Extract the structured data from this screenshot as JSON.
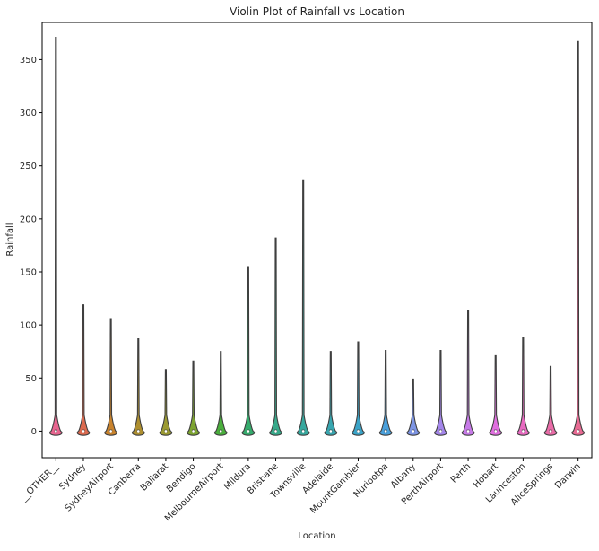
{
  "chart_data": {
    "type": "violin",
    "title": "Violin Plot of Rainfall vs Location",
    "xlabel": "Location",
    "ylabel": "Rainfall",
    "ylim": [
      -25,
      385
    ],
    "yticks": [
      0,
      50,
      100,
      150,
      200,
      250,
      300,
      350
    ],
    "grid": false,
    "categories": [
      "__OTHER__",
      "Sydney",
      "SydneyAirport",
      "Canberra",
      "Ballarat",
      "Bendigo",
      "MelbourneAirport",
      "Mildura",
      "Brisbane",
      "Townsville",
      "Adelaide",
      "MountGambier",
      "Nuriootpa",
      "Albany",
      "PerthAirport",
      "Perth",
      "Hobart",
      "Launceston",
      "AliceSprings",
      "Darwin"
    ],
    "max_values": [
      371,
      119,
      106,
      87,
      58,
      66,
      75,
      155,
      182,
      236,
      75,
      84,
      76,
      49,
      76,
      114,
      71,
      88,
      61,
      367
    ],
    "colors": [
      "#e8648f",
      "#dc6a4f",
      "#c9832c",
      "#ae8f2f",
      "#9b9a31",
      "#7da431",
      "#4aaf3c",
      "#35ab6c",
      "#37a98a",
      "#37a89e",
      "#38a6b0",
      "#3aa3c7",
      "#49a0dc",
      "#7d95e5",
      "#a486eb",
      "#c77ae8",
      "#e06edf",
      "#e86ac1",
      "#ea6ca8",
      "#e86a93"
    ]
  }
}
